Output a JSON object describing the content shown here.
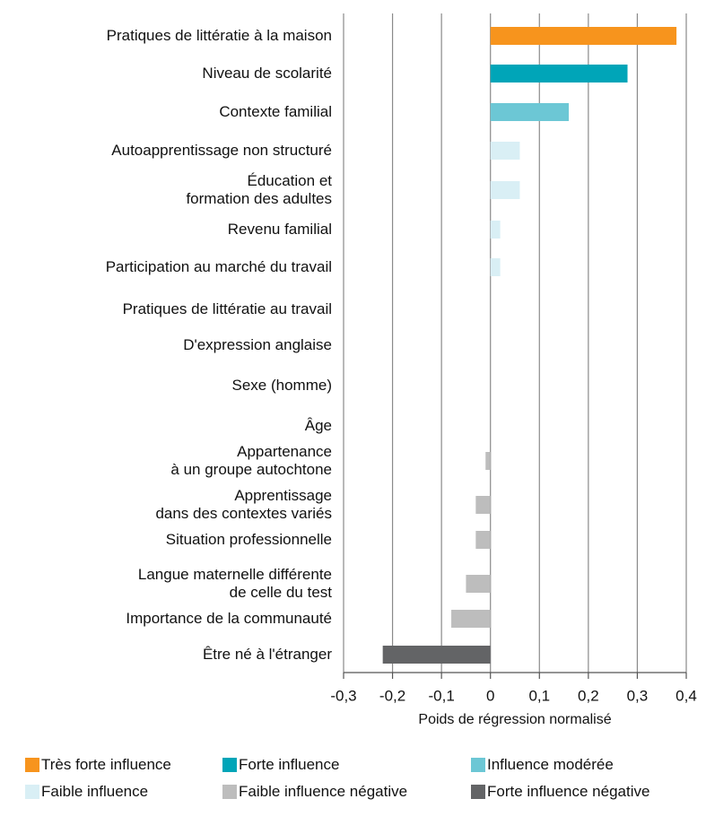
{
  "chart_data": {
    "type": "bar",
    "orientation": "horizontal",
    "categories": [
      "Pratiques de littératie à la maison",
      "Niveau de scolarité",
      "Contexte familial",
      "Autoapprentissage non structuré",
      "Éducation et\nformation des adultes",
      "Revenu familial",
      "Participation au marché du travail",
      "Pratiques de littératie au travail",
      "D'expression anglaise",
      "Sexe (homme)",
      "Âge",
      "Appartenance\nà un groupe autochtone",
      "Apprentissage\ndans des contextes variés",
      "Situation professionnelle",
      "Langue maternelle différente\nde celle du test",
      "Importance de la communauté",
      "Être né à l'étranger"
    ],
    "values": [
      0.38,
      0.28,
      0.16,
      0.06,
      0.06,
      0.02,
      0.02,
      0,
      0,
      0,
      0,
      -0.01,
      -0.03,
      -0.03,
      -0.05,
      -0.08,
      -0.22
    ],
    "colors": [
      "#f7941d",
      "#00a5b8",
      "#6cc7d5",
      "#d9eff5",
      "#d9eff5",
      "#d9eff5",
      "#d9eff5",
      "#d9eff5",
      "#d9eff5",
      "#d9eff5",
      "#d9eff5",
      "#bdbdbd",
      "#bdbdbd",
      "#bdbdbd",
      "#bdbdbd",
      "#bdbdbd",
      "#636466"
    ],
    "xlim": [
      -0.3,
      0.4
    ],
    "xticks": [
      {
        "value": -0.3,
        "label": "-0,3"
      },
      {
        "value": -0.2,
        "label": "-0,2"
      },
      {
        "value": -0.1,
        "label": "-0,1"
      },
      0,
      {
        "value": 0.1,
        "label": "0,1"
      },
      {
        "value": 0.2,
        "label": "0,2"
      },
      {
        "value": 0.3,
        "label": "0,3"
      },
      {
        "value": 0.4,
        "label": "0,4"
      }
    ],
    "x_label": "Poids de régression normalisé",
    "grid": true,
    "legend": [
      {
        "label": "Très forte influence",
        "color": "#f7941d"
      },
      {
        "label": "Forte influence",
        "color": "#00a5b8"
      },
      {
        "label": "Influence modérée",
        "color": "#6cc7d5"
      },
      {
        "label": "Faible influence",
        "color": "#d9eff5"
      },
      {
        "label": "Faible influence négative",
        "color": "#bdbdbd"
      },
      {
        "label": "Forte influence négative",
        "color": "#636466"
      }
    ]
  }
}
